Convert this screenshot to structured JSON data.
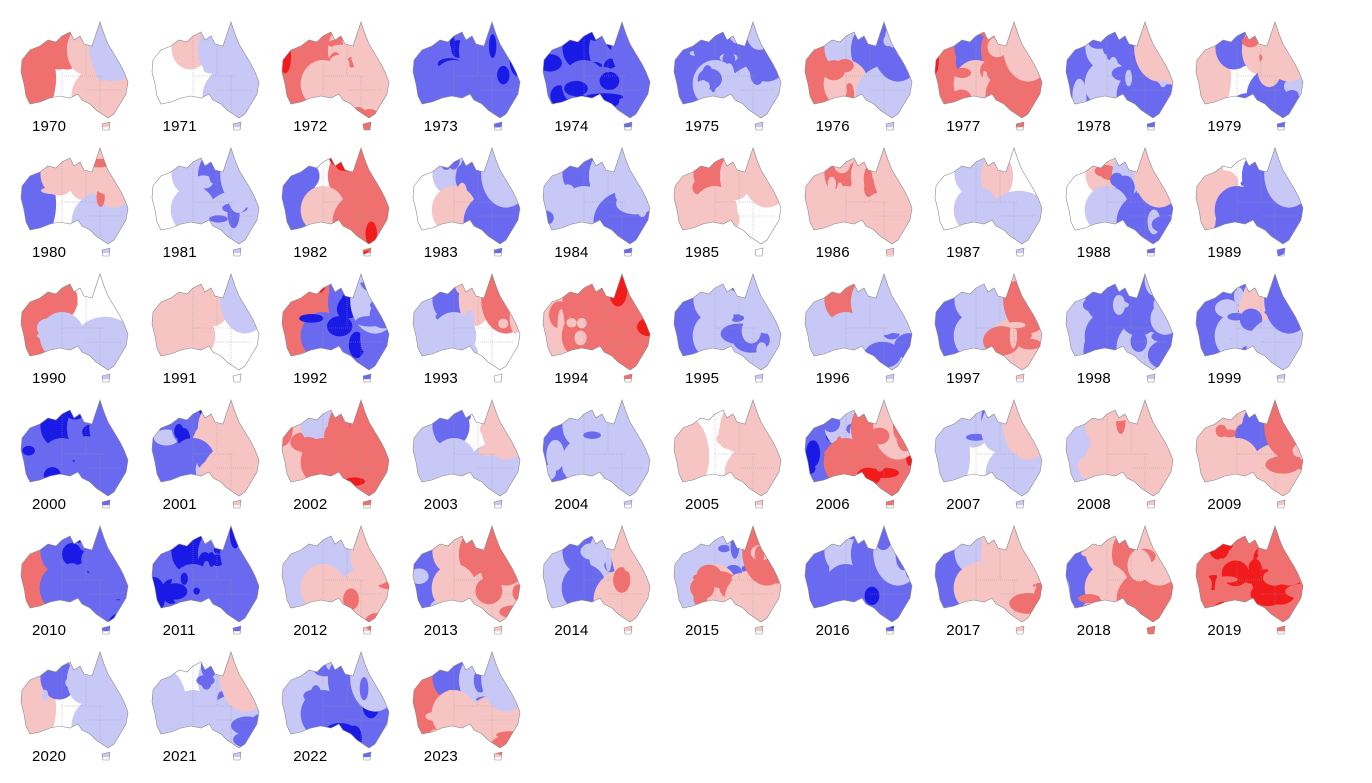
{
  "colors": {
    "strong_red": "#f21b1b",
    "mid_red": "#f07070",
    "light_red": "#f7c4c4",
    "strong_blue": "#1a1ae6",
    "mid_blue": "#6a6af0",
    "light_blue": "#c8c8f7",
    "outline": "#8a8a8a"
  },
  "panels": [
    {
      "year": "1970",
      "anomaly": [
        0.5,
        0.6,
        0.3,
        0.1,
        0.2,
        -0.2
      ]
    },
    {
      "year": "1971",
      "anomaly": [
        0.0,
        0.2,
        -0.3,
        0.1,
        -0.2,
        -0.3
      ]
    },
    {
      "year": "1972",
      "anomaly": [
        0.8,
        0.6,
        0.4,
        0.2,
        0.4,
        0.2
      ]
    },
    {
      "year": "1973",
      "anomaly": [
        -0.7,
        -0.8,
        -0.6,
        -0.6,
        -0.7,
        -0.8
      ]
    },
    {
      "year": "1974",
      "anomaly": [
        -0.9,
        -1.0,
        -0.9,
        -0.8,
        -0.9,
        -0.7
      ]
    },
    {
      "year": "1975",
      "anomaly": [
        -0.5,
        -0.6,
        -0.5,
        -0.4,
        -0.3,
        -0.5
      ]
    },
    {
      "year": "1976",
      "anomaly": [
        0.7,
        -0.2,
        -0.7,
        0.4,
        -0.2,
        -0.5
      ]
    },
    {
      "year": "1977",
      "anomaly": [
        0.8,
        -0.6,
        0.5,
        0.4,
        0.6,
        0.2
      ]
    },
    {
      "year": "1978",
      "anomaly": [
        -0.5,
        -0.4,
        -0.6,
        -0.3,
        -0.5,
        0.3
      ]
    },
    {
      "year": "1979",
      "anomaly": [
        0.2,
        -0.6,
        0.4,
        0.1,
        -0.5,
        0.2
      ]
    },
    {
      "year": "1980",
      "anomaly": [
        -0.7,
        0.2,
        0.3,
        0.1,
        -0.2,
        0.4
      ]
    },
    {
      "year": "1981",
      "anomaly": [
        0.0,
        -0.3,
        -0.5,
        -0.2,
        -0.4,
        -0.3
      ]
    },
    {
      "year": "1982",
      "anomaly": [
        -0.6,
        0.0,
        0.9,
        0.3,
        0.8,
        0.7
      ]
    },
    {
      "year": "1983",
      "anomaly": [
        0.1,
        -0.4,
        -0.6,
        0.2,
        -0.7,
        -0.3
      ]
    },
    {
      "year": "1984",
      "anomaly": [
        -0.4,
        -0.6,
        -0.3,
        -0.2,
        -0.5,
        -0.2
      ]
    },
    {
      "year": "1985",
      "anomaly": [
        0.3,
        0.6,
        0.2,
        0.3,
        0.1,
        0.2
      ]
    },
    {
      "year": "1986",
      "anomaly": [
        0.3,
        0.5,
        0.4,
        0.2,
        0.3,
        0.3
      ]
    },
    {
      "year": "1987",
      "anomaly": [
        0.1,
        -0.2,
        0.2,
        -0.2,
        -0.3,
        0.1
      ]
    },
    {
      "year": "1988",
      "anomaly": [
        0.1,
        0.4,
        -0.4,
        -0.2,
        -0.5,
        0.2
      ]
    },
    {
      "year": "1989",
      "anomaly": [
        0.3,
        0.1,
        -0.6,
        -0.6,
        -0.7,
        -0.3
      ]
    },
    {
      "year": "1990",
      "anomaly": [
        0.7,
        0.6,
        -0.1,
        -0.3,
        -0.3,
        -0.1
      ]
    },
    {
      "year": "1991",
      "anomaly": [
        0.3,
        0.2,
        0.3,
        0.3,
        0.1,
        -0.2
      ]
    },
    {
      "year": "1992",
      "anomaly": [
        0.6,
        0.8,
        -0.8,
        -0.9,
        -0.9,
        -0.4
      ]
    },
    {
      "year": "1993",
      "anomaly": [
        -0.2,
        -0.5,
        0.3,
        -0.3,
        0.0,
        0.5
      ]
    },
    {
      "year": "1994",
      "anomaly": [
        0.4,
        0.6,
        0.7,
        0.5,
        0.6,
        0.8
      ]
    },
    {
      "year": "1995",
      "anomaly": [
        -0.7,
        -0.3,
        -0.4,
        -0.2,
        -0.4,
        -0.3
      ]
    },
    {
      "year": "1996",
      "anomaly": [
        -0.2,
        0.6,
        -0.3,
        -0.2,
        -0.4,
        -0.2
      ]
    },
    {
      "year": "1997",
      "anomaly": [
        -0.6,
        -0.3,
        -0.3,
        -0.2,
        0.4,
        0.5
      ]
    },
    {
      "year": "1998",
      "anomaly": [
        -0.4,
        -0.6,
        -0.5,
        -0.5,
        -0.4,
        -0.5
      ]
    },
    {
      "year": "1999",
      "anomaly": [
        -0.7,
        -0.5,
        0.2,
        -0.4,
        -0.3,
        -0.5
      ]
    },
    {
      "year": "2000",
      "anomaly": [
        -0.9,
        -1.0,
        -0.8,
        -0.8,
        -0.7,
        -0.6
      ]
    },
    {
      "year": "2001",
      "anomaly": [
        -0.5,
        -0.9,
        0.3,
        -0.5,
        0.2,
        0.3
      ]
    },
    {
      "year": "2002",
      "anomaly": [
        0.4,
        -0.3,
        0.8,
        0.6,
        0.8,
        0.7
      ]
    },
    {
      "year": "2003",
      "anomaly": [
        -0.2,
        -0.6,
        0.1,
        -0.3,
        -0.2,
        0.2
      ]
    },
    {
      "year": "2004",
      "anomaly": [
        -0.5,
        -0.3,
        -0.4,
        -0.2,
        -0.3,
        -0.2
      ]
    },
    {
      "year": "2005",
      "anomaly": [
        0.2,
        0.1,
        0.3,
        0.1,
        0.2,
        0.2
      ]
    },
    {
      "year": "2006",
      "anomaly": [
        -0.8,
        -0.4,
        0.6,
        0.7,
        0.9,
        0.4
      ]
    },
    {
      "year": "2007",
      "anomaly": [
        -0.2,
        -0.4,
        -0.3,
        0.1,
        -0.2,
        0.3
      ]
    },
    {
      "year": "2008",
      "anomaly": [
        -0.3,
        0.3,
        0.4,
        0.2,
        0.3,
        0.2
      ]
    },
    {
      "year": "2009",
      "anomaly": [
        0.2,
        0.4,
        -0.6,
        0.2,
        0.4,
        0.5
      ]
    },
    {
      "year": "2010",
      "anomaly": [
        0.6,
        -0.6,
        -0.8,
        -0.7,
        -0.9,
        -0.6
      ]
    },
    {
      "year": "2011",
      "anomaly": [
        -0.9,
        -1.0,
        -0.8,
        -0.8,
        -0.7,
        -0.9
      ]
    },
    {
      "year": "2012",
      "anomaly": [
        -0.2,
        -0.3,
        -0.3,
        0.3,
        0.4,
        0.2
      ]
    },
    {
      "year": "2013",
      "anomaly": [
        -0.5,
        0.2,
        0.7,
        0.3,
        0.4,
        0.6
      ]
    },
    {
      "year": "2014",
      "anomaly": [
        -0.3,
        -0.5,
        -0.4,
        -0.6,
        0.3,
        0.4
      ]
    },
    {
      "year": "2015",
      "anomaly": [
        -0.3,
        -0.3,
        -0.4,
        0.4,
        0.3,
        0.5
      ]
    },
    {
      "year": "2016",
      "anomaly": [
        -0.5,
        -0.4,
        -0.7,
        -0.7,
        -0.8,
        -0.4
      ]
    },
    {
      "year": "2017",
      "anomaly": [
        -0.7,
        -0.2,
        0.3,
        0.3,
        0.4,
        0.2
      ]
    },
    {
      "year": "2018",
      "anomaly": [
        -0.5,
        0.2,
        0.6,
        0.4,
        0.7,
        0.4
      ]
    },
    {
      "year": "2019",
      "anomaly": [
        0.9,
        0.9,
        0.8,
        0.9,
        0.9,
        0.7
      ]
    },
    {
      "year": "2020",
      "anomaly": [
        0.2,
        -0.5,
        -0.2,
        -0.1,
        -0.3,
        -0.2
      ]
    },
    {
      "year": "2021",
      "anomaly": [
        -0.3,
        -0.1,
        -0.4,
        -0.3,
        -0.4,
        0.2
      ]
    },
    {
      "year": "2022",
      "anomaly": [
        -0.3,
        -0.4,
        -0.7,
        -0.6,
        -0.8,
        -0.4
      ]
    },
    {
      "year": "2023",
      "anomaly": [
        0.5,
        -0.6,
        -0.4,
        0.3,
        0.4,
        -0.2
      ]
    }
  ]
}
